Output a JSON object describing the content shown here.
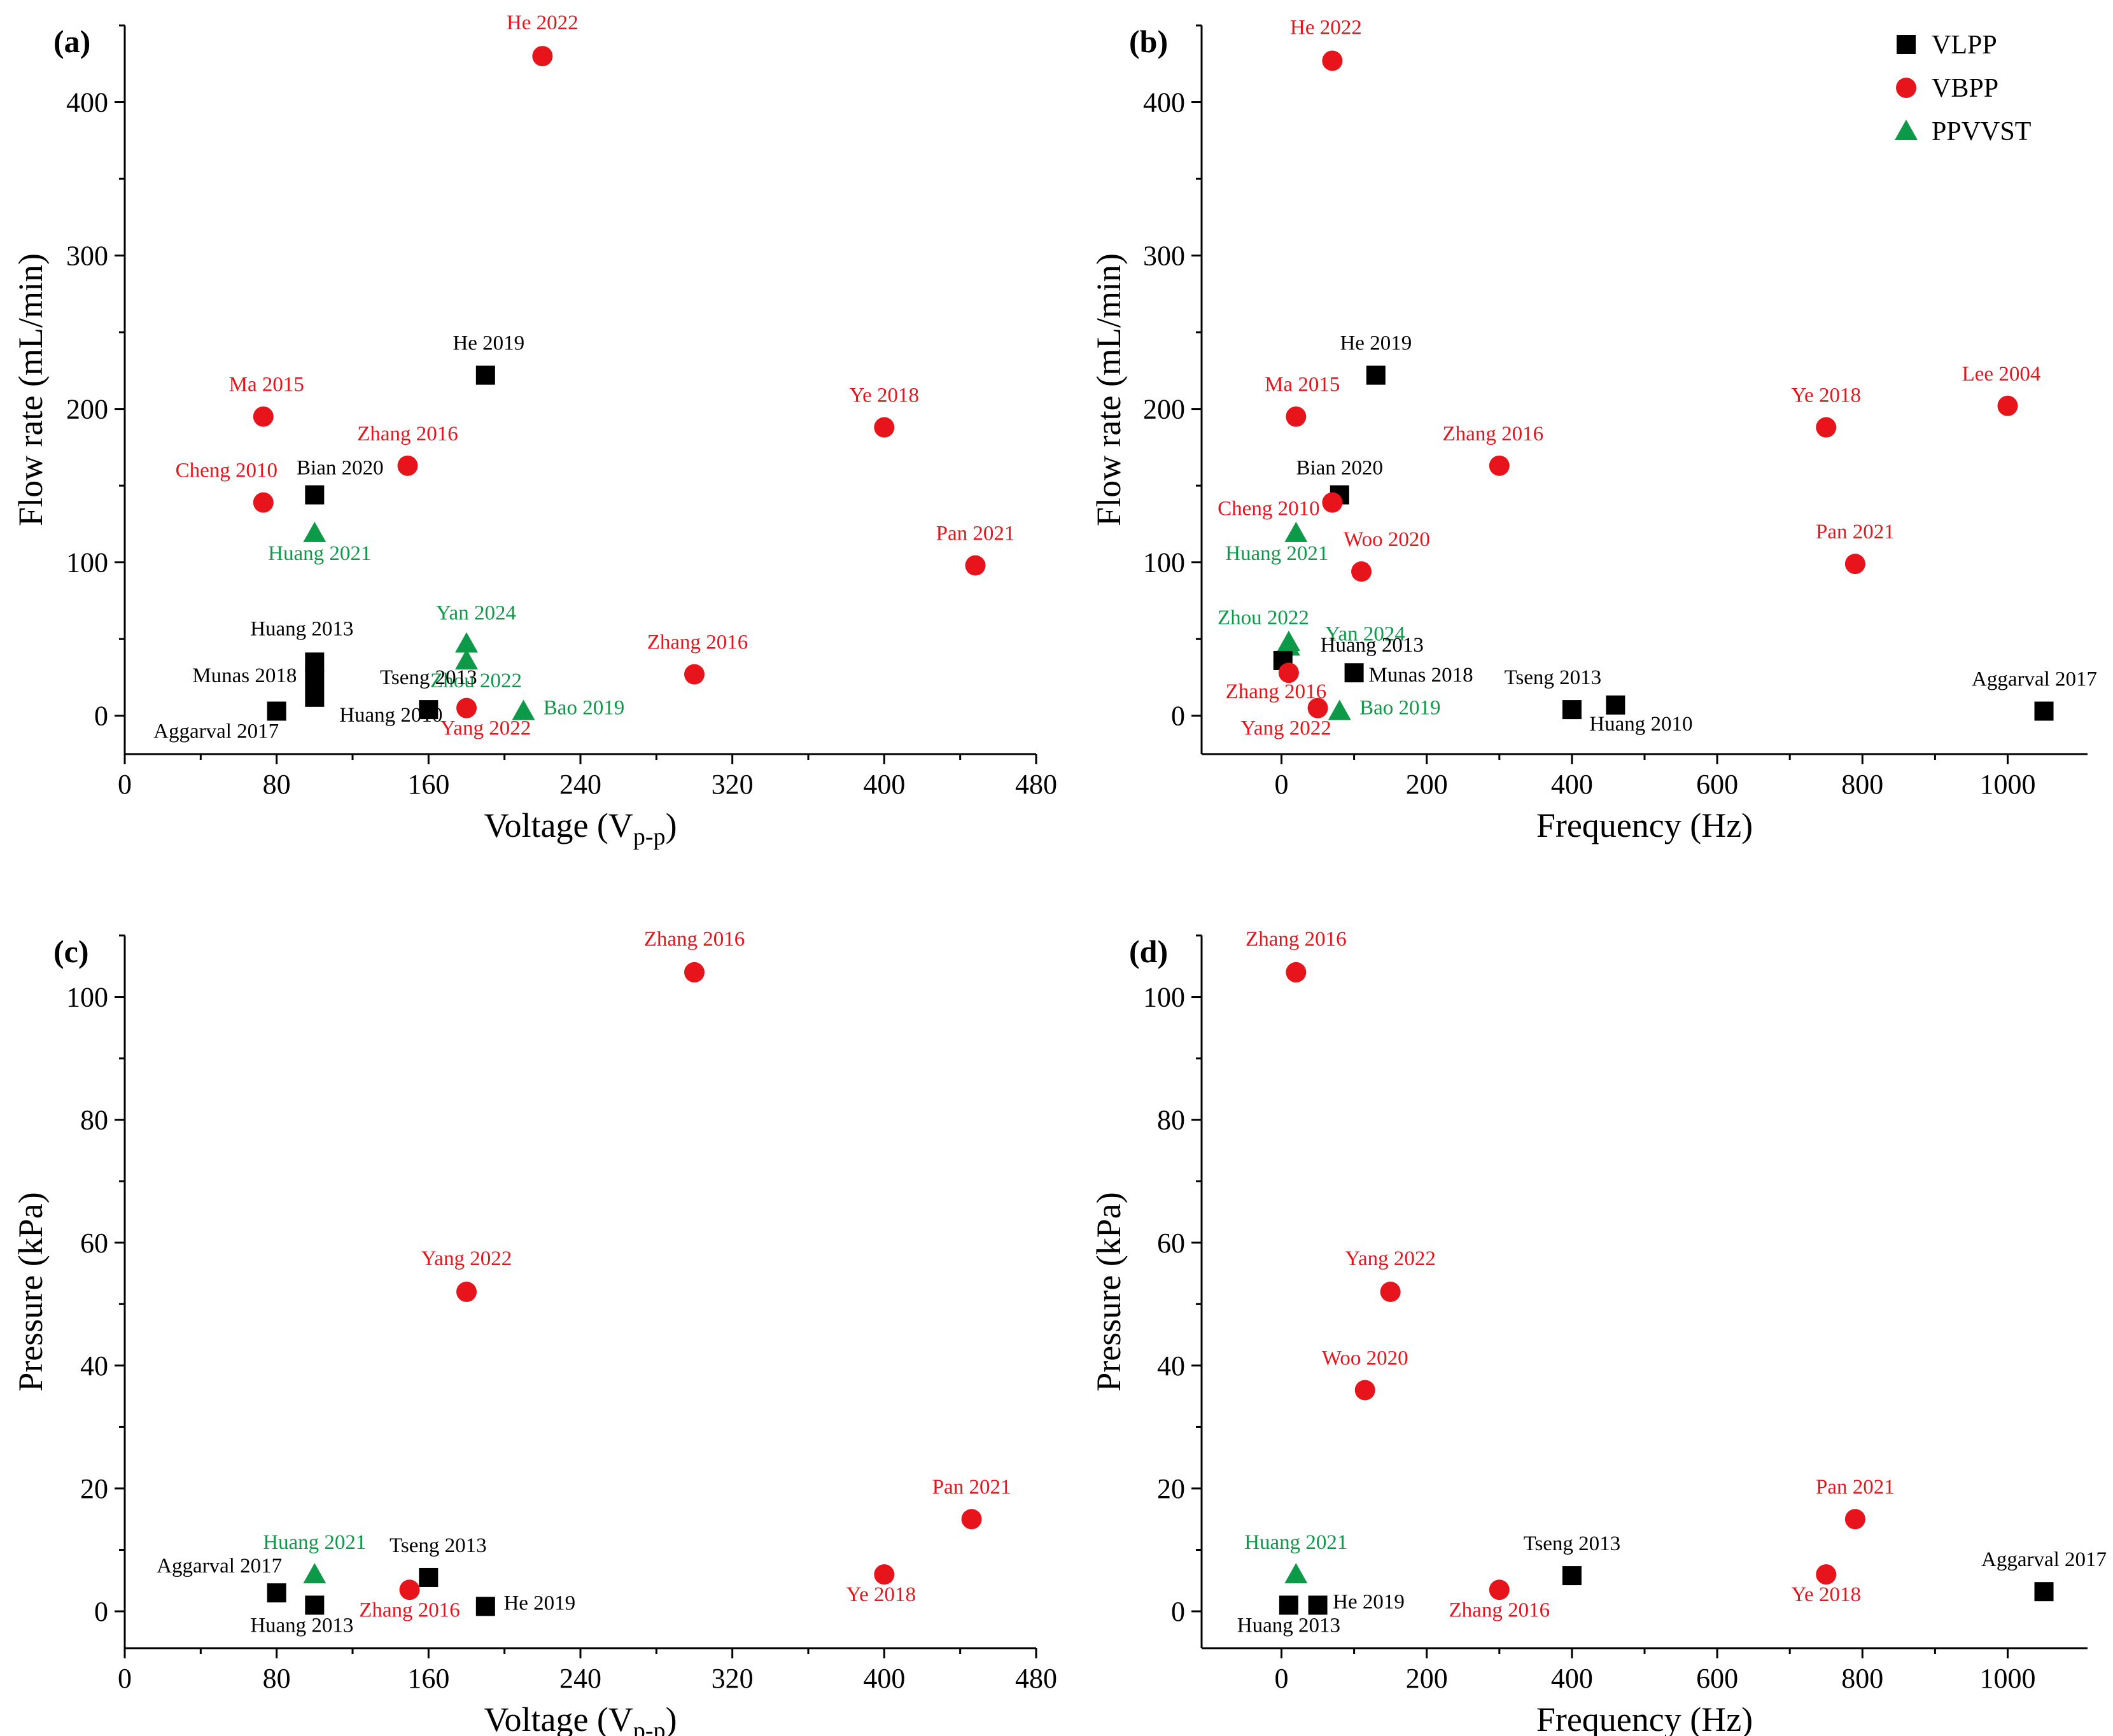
{
  "colors": {
    "VLPP": "#000000",
    "VBPP": "#e8141b",
    "PPVVST": "#0d9a48"
  },
  "legend": [
    {
      "key": "VLPP",
      "label": "VLPP",
      "marker": "square"
    },
    {
      "key": "VBPP",
      "label": "VBPP",
      "marker": "circle"
    },
    {
      "key": "PPVVST",
      "label": "PPVVST",
      "marker": "triangle"
    }
  ],
  "chart_data": [
    {
      "type": "scatter",
      "panel": "(a)",
      "xlabel_main": "Voltage (V",
      "xlabel_sub": "p-p",
      "xlabel_end": ")",
      "ylabel": "Flow rate (mL/min)",
      "xlim": [
        0,
        480
      ],
      "ylim": [
        -25,
        450
      ],
      "xticks": [
        0,
        80,
        160,
        240,
        320,
        400,
        480
      ],
      "yticks": [
        0,
        100,
        200,
        300,
        400
      ],
      "points": [
        {
          "s": "VBPP",
          "label": "He 2022",
          "x": 220,
          "y": 430,
          "dx": 0,
          "dy": -42
        },
        {
          "s": "VLPP",
          "label": "He 2019",
          "x": 190,
          "y": 222,
          "dx": 5,
          "dy": -40
        },
        {
          "s": "VBPP",
          "label": "Ma 2015",
          "x": 73,
          "y": 195,
          "dx": 5,
          "dy": -40
        },
        {
          "s": "VBPP",
          "label": "Ye 2018",
          "x": 400,
          "y": 188,
          "dx": 0,
          "dy": -40
        },
        {
          "s": "VBPP",
          "label": "Zhang 2016",
          "x": 149,
          "y": 163,
          "dx": 0,
          "dy": -40
        },
        {
          "s": "VBPP",
          "label": "Cheng 2010",
          "x": 73,
          "y": 139,
          "dx": -58,
          "dy": -40
        },
        {
          "s": "VLPP",
          "label": "Bian 2020",
          "x": 100,
          "y": 144,
          "dx": 40,
          "dy": -32
        },
        {
          "s": "PPVVST",
          "label": "Huang 2021",
          "x": 100,
          "y": 119,
          "dx": 8,
          "dy": 42
        },
        {
          "s": "VBPP",
          "label": "Pan 2021",
          "x": 448,
          "y": 98,
          "dx": 0,
          "dy": -40
        },
        {
          "s": "VLPP",
          "label": "Huang 2013",
          "x": 100,
          "y": 35,
          "dx": -20,
          "dy": -42
        },
        {
          "s": "VLPP",
          "label": "Munas 2018",
          "x": 100,
          "y": 24,
          "dx": -110,
          "dy": 5
        },
        {
          "s": "VLPP",
          "label": "Huang 2010",
          "x": 100,
          "y": 12,
          "dx": 120,
          "dy": 38
        },
        {
          "s": "PPVVST",
          "label": "Yan 2024",
          "x": 180,
          "y": 47,
          "dx": 15,
          "dy": -38
        },
        {
          "s": "PPVVST",
          "label": "Zhou 2022",
          "x": 180,
          "y": 36,
          "dx": 15,
          "dy": 42
        },
        {
          "s": "VBPP",
          "label": "Zhang 2016",
          "x": 300,
          "y": 27,
          "dx": 5,
          "dy": -40
        },
        {
          "s": "VLPP",
          "label": "Tseng 2013",
          "x": 160,
          "y": 4,
          "dx": 0,
          "dy": -40
        },
        {
          "s": "VBPP",
          "label": "Yang 2022",
          "x": 180,
          "y": 5,
          "dx": 30,
          "dy": 42
        },
        {
          "s": "PPVVST",
          "label": "Bao 2019",
          "x": 210,
          "y": 3,
          "dx": 95,
          "dy": 5
        },
        {
          "s": "VLPP",
          "label": "Aggarval 2017",
          "x": 80,
          "y": 3,
          "dx": -95,
          "dy": 42
        }
      ]
    },
    {
      "type": "scatter",
      "panel": "(b)",
      "xlabel_main": "Frequency (Hz)",
      "xlabel_sub": "",
      "xlabel_end": "",
      "ylabel": "Flow rate (mL/min)",
      "xlim": [
        -110,
        1110
      ],
      "ylim": [
        -25,
        450
      ],
      "xticks": [
        0,
        200,
        400,
        600,
        800,
        1000
      ],
      "yticks": [
        0,
        100,
        200,
        300,
        400
      ],
      "points": [
        {
          "s": "VBPP",
          "label": "He 2022",
          "x": 70,
          "y": 427,
          "dx": -10,
          "dy": -42
        },
        {
          "s": "VLPP",
          "label": "He 2019",
          "x": 130,
          "y": 222,
          "dx": 0,
          "dy": -40
        },
        {
          "s": "VBPP",
          "label": "Ma 2015",
          "x": 20,
          "y": 195,
          "dx": 10,
          "dy": -40
        },
        {
          "s": "VBPP",
          "label": "Ye 2018",
          "x": 750,
          "y": 188,
          "dx": 0,
          "dy": -40
        },
        {
          "s": "VBPP",
          "label": "Lee 2004",
          "x": 1000,
          "y": 202,
          "dx": -10,
          "dy": -40
        },
        {
          "s": "VBPP",
          "label": "Zhang 2016",
          "x": 300,
          "y": 163,
          "dx": -10,
          "dy": -40
        },
        {
          "s": "VLPP",
          "label": "Bian 2020",
          "x": 80,
          "y": 144,
          "dx": 0,
          "dy": -32
        },
        {
          "s": "VBPP",
          "label": "Cheng 2010",
          "x": 70,
          "y": 139,
          "dx": -100,
          "dy": 20
        },
        {
          "s": "PPVVST",
          "label": "Huang 2021",
          "x": 20,
          "y": 119,
          "dx": -30,
          "dy": 42
        },
        {
          "s": "VBPP",
          "label": "Woo 2020",
          "x": 110,
          "y": 94,
          "dx": 40,
          "dy": -40
        },
        {
          "s": "VBPP",
          "label": "Pan 2021",
          "x": 790,
          "y": 99,
          "dx": 0,
          "dy": -40
        },
        {
          "s": "PPVVST",
          "label": "Zhou 2022",
          "x": 10,
          "y": 48,
          "dx": -40,
          "dy": -28
        },
        {
          "s": "PPVVST",
          "label": "Yan 2024",
          "x": 10,
          "y": 45,
          "dx": 120,
          "dy": -10
        },
        {
          "s": "VLPP",
          "label": "Huang 2013",
          "x": 2,
          "y": 36,
          "dx": 140,
          "dy": -14
        },
        {
          "s": "VBPP",
          "label": "Zhang 2016",
          "x": 10,
          "y": 28,
          "dx": -20,
          "dy": 40
        },
        {
          "s": "VLPP",
          "label": "Munas 2018",
          "x": 100,
          "y": 28,
          "dx": 105,
          "dy": 14
        },
        {
          "s": "VBPP",
          "label": "Yang 2022",
          "x": 50,
          "y": 5,
          "dx": -50,
          "dy": 42
        },
        {
          "s": "PPVVST",
          "label": "Bao 2019",
          "x": 80,
          "y": 3,
          "dx": 95,
          "dy": 5
        },
        {
          "s": "VLPP",
          "label": "Tseng 2013",
          "x": 400,
          "y": 4,
          "dx": -30,
          "dy": -40
        },
        {
          "s": "VLPP",
          "label": "Huang 2010",
          "x": 460,
          "y": 7,
          "dx": 40,
          "dy": 40
        },
        {
          "s": "VLPP",
          "label": "Aggarval 2017",
          "x": 1050,
          "y": 3,
          "dx": -15,
          "dy": -40
        }
      ]
    },
    {
      "type": "scatter",
      "panel": "(c)",
      "xlabel_main": "Voltage (V",
      "xlabel_sub": "p-p",
      "xlabel_end": ")",
      "ylabel": "Pressure (kPa)",
      "xlim": [
        0,
        480
      ],
      "ylim": [
        -6,
        110
      ],
      "xticks": [
        0,
        80,
        160,
        240,
        320,
        400,
        480
      ],
      "yticks": [
        0,
        20,
        40,
        60,
        80,
        100
      ],
      "points": [
        {
          "s": "VBPP",
          "label": "Zhang 2016",
          "x": 300,
          "y": 104,
          "dx": 0,
          "dy": -42
        },
        {
          "s": "VBPP",
          "label": "Yang 2022",
          "x": 180,
          "y": 52,
          "dx": 0,
          "dy": -42
        },
        {
          "s": "VBPP",
          "label": "Pan 2021",
          "x": 446,
          "y": 15,
          "dx": 0,
          "dy": -40
        },
        {
          "s": "PPVVST",
          "label": "Huang 2021",
          "x": 100,
          "y": 6,
          "dx": 0,
          "dy": -40
        },
        {
          "s": "VLPP",
          "label": "Tseng 2013",
          "x": 160,
          "y": 5.5,
          "dx": 15,
          "dy": -40
        },
        {
          "s": "VLPP",
          "label": "Aggarval 2017",
          "x": 80,
          "y": 3,
          "dx": -90,
          "dy": -32
        },
        {
          "s": "VBPP",
          "label": "Zhang 2016",
          "x": 150,
          "y": 3.5,
          "dx": 0,
          "dy": 42
        },
        {
          "s": "VBPP",
          "label": "Ye 2018",
          "x": 400,
          "y": 6,
          "dx": -5,
          "dy": 42
        },
        {
          "s": "VLPP",
          "label": "Huang 2013",
          "x": 100,
          "y": 1,
          "dx": -20,
          "dy": 42
        },
        {
          "s": "VLPP",
          "label": "He 2019",
          "x": 190,
          "y": 0.8,
          "dx": 85,
          "dy": 5
        }
      ]
    },
    {
      "type": "scatter",
      "panel": "(d)",
      "xlabel_main": "Frequency (Hz)",
      "xlabel_sub": "",
      "xlabel_end": "",
      "ylabel": "Pressure (kPa)",
      "xlim": [
        -110,
        1110
      ],
      "ylim": [
        -6,
        110
      ],
      "xticks": [
        0,
        200,
        400,
        600,
        800,
        1000
      ],
      "yticks": [
        0,
        20,
        40,
        60,
        80,
        100
      ],
      "points": [
        {
          "s": "VBPP",
          "label": "Zhang 2016",
          "x": 20,
          "y": 104,
          "dx": 0,
          "dy": -42
        },
        {
          "s": "VBPP",
          "label": "Yang 2022",
          "x": 150,
          "y": 52,
          "dx": 0,
          "dy": -42
        },
        {
          "s": "VBPP",
          "label": "Woo 2020",
          "x": 115,
          "y": 36,
          "dx": 0,
          "dy": -40
        },
        {
          "s": "VBPP",
          "label": "Pan 2021",
          "x": 790,
          "y": 15,
          "dx": 0,
          "dy": -40
        },
        {
          "s": "PPVVST",
          "label": "Huang 2021",
          "x": 20,
          "y": 6,
          "dx": 0,
          "dy": -40
        },
        {
          "s": "VLPP",
          "label": "Tseng 2013",
          "x": 400,
          "y": 5.8,
          "dx": 0,
          "dy": -40
        },
        {
          "s": "VLPP",
          "label": "Aggarval 2017",
          "x": 1050,
          "y": 3.2,
          "dx": 0,
          "dy": -40
        },
        {
          "s": "VBPP",
          "label": "Zhang 2016",
          "x": 300,
          "y": 3.5,
          "dx": 0,
          "dy": 42
        },
        {
          "s": "VBPP",
          "label": "Ye 2018",
          "x": 750,
          "y": 6,
          "dx": 0,
          "dy": 42
        },
        {
          "s": "VLPP",
          "label": "Huang 2013",
          "x": 10,
          "y": 1,
          "dx": 0,
          "dy": 42
        },
        {
          "s": "VLPP",
          "label": "He 2019",
          "x": 50,
          "y": 1,
          "dx": 80,
          "dy": 5
        }
      ]
    }
  ]
}
